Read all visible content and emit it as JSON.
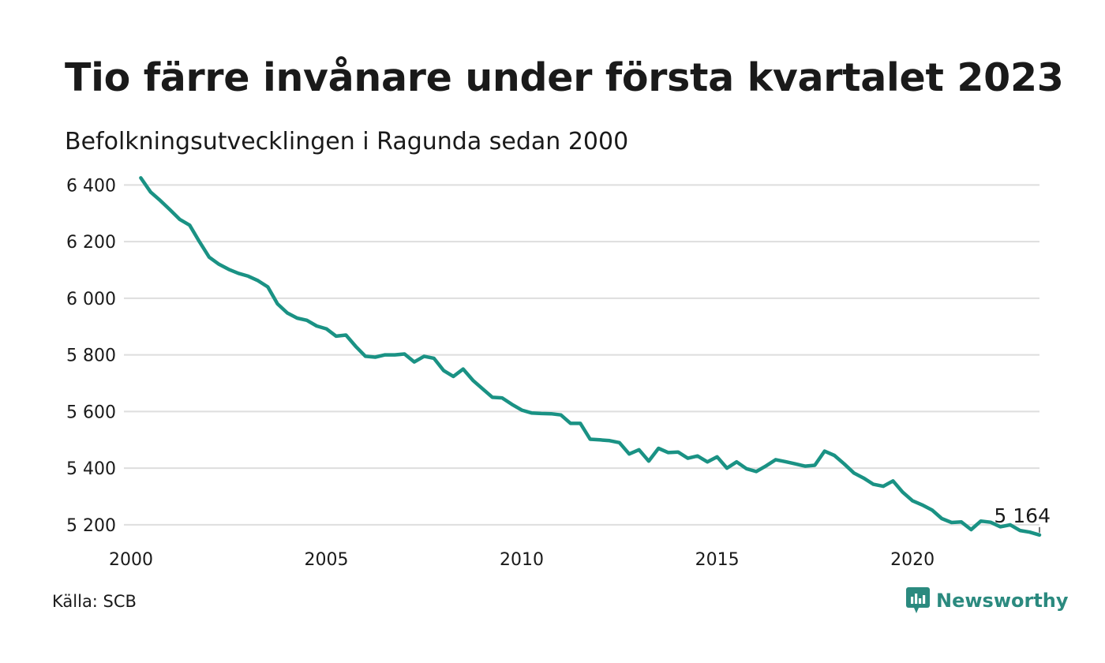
{
  "title": "Tio färre invånare under första kvartalet 2023",
  "subtitle": "Befolkningsutvecklingen i Ragunda sedan 2000",
  "source": "Källa: SCB",
  "brand": {
    "name": "Newsworthy",
    "icon": "newsworthy-logo-icon",
    "color": "#2b8a7f"
  },
  "colors": {
    "line": "#1a9284",
    "grid": "#dedede",
    "text": "#1a1a1a"
  },
  "chart_data": {
    "type": "line",
    "title": "Tio färre invånare under första kvartalet 2023",
    "subtitle": "Befolkningsutvecklingen i Ragunda sedan 2000",
    "xlabel": "",
    "ylabel": "",
    "xlim": [
      2000,
      2023.25
    ],
    "ylim": [
      5130,
      6440
    ],
    "grid": "horizontal",
    "legend": "none",
    "y_ticks": [
      5200,
      5400,
      5600,
      5800,
      6000,
      6200,
      6400
    ],
    "y_tick_labels": [
      "5 200",
      "5 400",
      "5 600",
      "5 800",
      "6 000",
      "6 200",
      "6 400"
    ],
    "x_ticks": [
      2000,
      2005,
      2010,
      2015,
      2020
    ],
    "x_tick_labels": [
      "2000",
      "2005",
      "2010",
      "2015",
      "2020"
    ],
    "end_label": "5 164",
    "series": [
      {
        "x": [
          2000.25,
          2000.5,
          2000.75,
          2001.0,
          2001.25,
          2001.5,
          2001.75,
          2002.0,
          2002.25,
          2002.5,
          2002.75,
          2003.0,
          2003.25,
          2003.5,
          2003.75,
          2004.0,
          2004.25,
          2004.5,
          2004.75,
          2005.0,
          2005.25,
          2005.5,
          2005.75,
          2006.0,
          2006.25,
          2006.5,
          2006.75,
          2007.0,
          2007.25,
          2007.5,
          2007.75,
          2008.0,
          2008.25,
          2008.5,
          2008.75,
          2009.0,
          2009.25,
          2009.5,
          2009.75,
          2010.0,
          2010.25,
          2010.5,
          2010.75,
          2011.0,
          2011.25,
          2011.5,
          2011.75,
          2012.0,
          2012.25,
          2012.5,
          2012.75,
          2013.0,
          2013.25,
          2013.5,
          2013.75,
          2014.0,
          2014.25,
          2014.5,
          2014.75,
          2015.0,
          2015.25,
          2015.5,
          2015.75,
          2016.0,
          2016.25,
          2016.5,
          2016.75,
          2017.0,
          2017.25,
          2017.5,
          2017.75,
          2018.0,
          2018.25,
          2018.5,
          2018.75,
          2019.0,
          2019.25,
          2019.5,
          2019.75,
          2020.0,
          2020.25,
          2020.5,
          2020.75,
          2021.0,
          2021.25,
          2021.5,
          2021.75,
          2022.0,
          2022.25,
          2022.5,
          2022.75,
          2023.0,
          2023.25
        ],
        "values": [
          6425,
          6375,
          6345,
          6312,
          6278,
          6258,
          6200,
          6145,
          6120,
          6102,
          6088,
          6078,
          6062,
          6040,
          5980,
          5948,
          5930,
          5922,
          5902,
          5892,
          5866,
          5870,
          5830,
          5795,
          5792,
          5800,
          5800,
          5803,
          5775,
          5795,
          5788,
          5745,
          5724,
          5750,
          5710,
          5680,
          5650,
          5648,
          5625,
          5605,
          5595,
          5593,
          5592,
          5588,
          5558,
          5558,
          5502,
          5500,
          5497,
          5490,
          5450,
          5465,
          5425,
          5470,
          5455,
          5457,
          5435,
          5443,
          5422,
          5440,
          5400,
          5422,
          5398,
          5388,
          5408,
          5430,
          5423,
          5415,
          5407,
          5410,
          5460,
          5445,
          5415,
          5383,
          5365,
          5343,
          5336,
          5355,
          5315,
          5285,
          5270,
          5252,
          5222,
          5208,
          5210,
          5183,
          5213,
          5209,
          5193,
          5200,
          5180,
          5174,
          5164
        ]
      }
    ]
  }
}
